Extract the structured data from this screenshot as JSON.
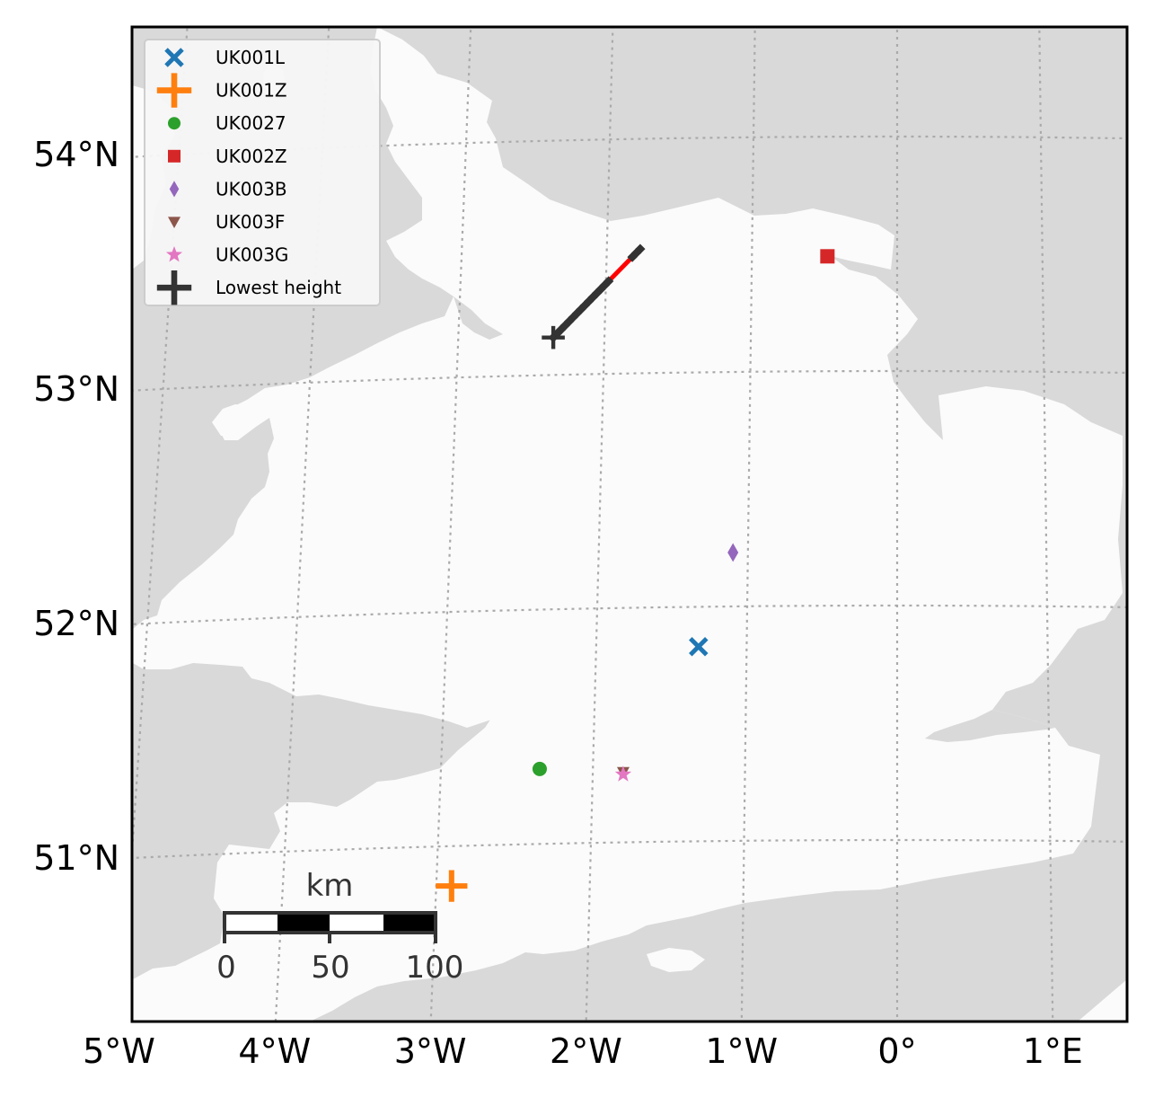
{
  "map": {
    "colors": {
      "sea": "#d9d9d9",
      "land": "#fbfbfb",
      "grid": "#aaaaaa",
      "frame": "#000000",
      "track": "#ff0000",
      "track_points": "#333333"
    },
    "lat_ticks": [
      {
        "label": "54°N",
        "value": 54
      },
      {
        "label": "53°N",
        "value": 53
      },
      {
        "label": "52°N",
        "value": 52
      },
      {
        "label": "51°N",
        "value": 51
      }
    ],
    "lon_ticks": [
      {
        "label": "5°W",
        "value": -5
      },
      {
        "label": "4°W",
        "value": -4
      },
      {
        "label": "3°W",
        "value": -3
      },
      {
        "label": "2°W",
        "value": -2
      },
      {
        "label": "1°W",
        "value": -1
      },
      {
        "label": "0°",
        "value": 0
      },
      {
        "label": "1°E",
        "value": 1
      }
    ],
    "legend": [
      {
        "label": "UK001L",
        "marker": "x",
        "color": "#1f77b4"
      },
      {
        "label": "UK001Z",
        "marker": "plus",
        "color": "#ff7f0e"
      },
      {
        "label": "UK0027",
        "marker": "circle",
        "color": "#2ca02c"
      },
      {
        "label": "UK002Z",
        "marker": "square",
        "color": "#d62728"
      },
      {
        "label": "UK003B",
        "marker": "diamond",
        "color": "#9467bd"
      },
      {
        "label": "UK003F",
        "marker": "triangle-down",
        "color": "#8c564b"
      },
      {
        "label": "UK003G",
        "marker": "star",
        "color": "#e377c2"
      },
      {
        "label": "Lowest height",
        "marker": "plus",
        "color": "#333333"
      }
    ],
    "stations": [
      {
        "id": "UK001L",
        "lon": -1.32,
        "lat": 51.83
      },
      {
        "id": "UK001Z",
        "lon": -2.9,
        "lat": 50.83
      },
      {
        "id": "UK0027",
        "lon": -2.35,
        "lat": 51.32
      },
      {
        "id": "UK002Z",
        "lon": -0.48,
        "lat": 53.49
      },
      {
        "id": "UK003B",
        "lon": -1.1,
        "lat": 52.23
      },
      {
        "id": "UK003F",
        "lon": -1.8,
        "lat": 51.3
      },
      {
        "id": "UK003G",
        "lon": -1.8,
        "lat": 51.29
      }
    ],
    "track": {
      "start": {
        "lon": -1.77,
        "lat": 53.53
      },
      "end": {
        "lon": -2.35,
        "lat": 53.16
      },
      "lowest_height": {
        "lon": -2.35,
        "lat": 53.16
      }
    },
    "scale_bar": {
      "unit": "km",
      "labels": [
        "0",
        "50",
        "100"
      ]
    }
  }
}
